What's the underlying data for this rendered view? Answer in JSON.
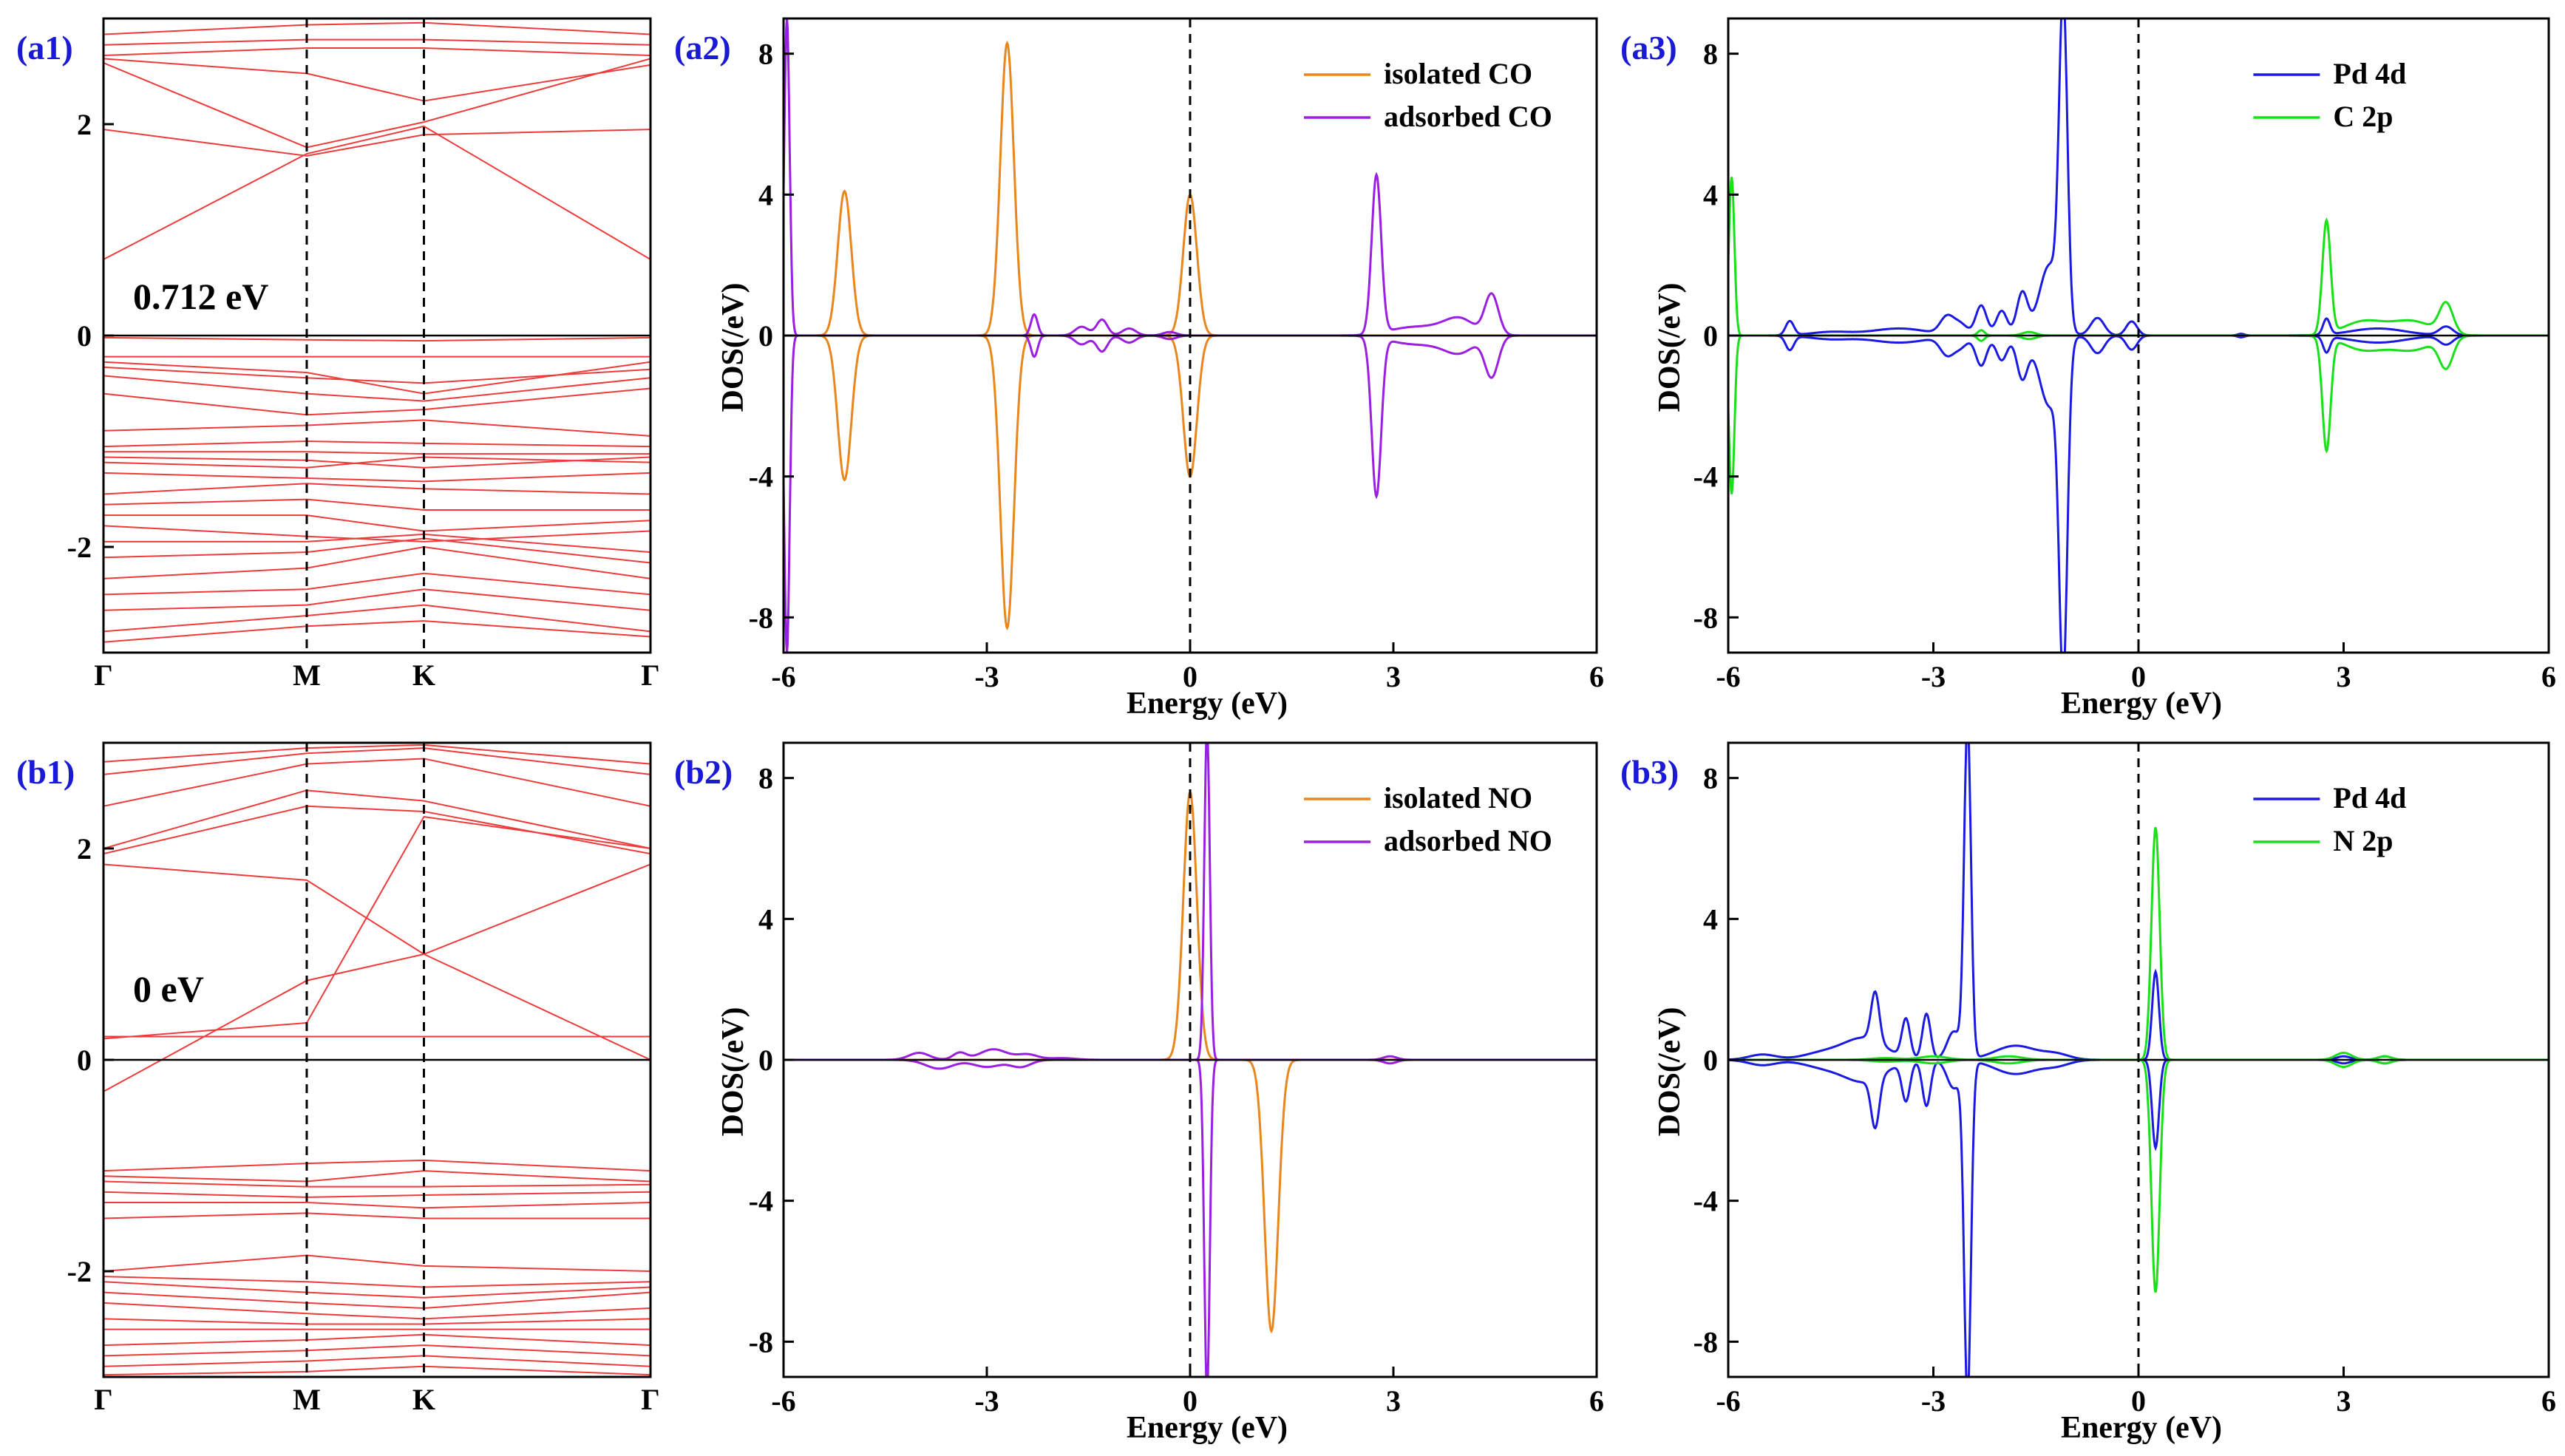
{
  "colors": {
    "band": "#ee3b3b",
    "isolated": "#e8871e",
    "adsorbed": "#9b1fe0",
    "pd4d": "#1a1ae0",
    "p2p": "#19e019",
    "label": "#1a1ad6"
  },
  "chart_data": [
    {
      "id": "a1",
      "type": "line",
      "panel_label": "(a1)",
      "xlabel": "",
      "ylabel": "",
      "x_ticks": [
        "Γ",
        "M",
        "K",
        "Γ"
      ],
      "ylim": [
        -3,
        3
      ],
      "y_ticks": [
        "-2",
        "0",
        "2"
      ],
      "annotation": "0.712 eV",
      "band_edges": {
        "vbm": 0.0,
        "cbm": 0.712
      },
      "conduction_bands": [
        [
          0.72,
          1.72,
          1.98,
          0.72
        ],
        [
          1.95,
          1.7,
          1.9,
          1.95
        ],
        [
          2.58,
          1.78,
          2.02,
          2.62
        ],
        [
          2.62,
          2.48,
          2.22,
          2.56
        ],
        [
          2.65,
          2.72,
          2.72,
          2.65
        ],
        [
          2.75,
          2.8,
          2.8,
          2.75
        ],
        [
          2.85,
          2.94,
          2.96,
          2.85
        ]
      ],
      "valence_bands": [
        [
          -0.02,
          -0.04,
          -0.05,
          -0.02
        ],
        [
          -0.2,
          -0.2,
          -0.2,
          -0.2
        ],
        [
          -0.25,
          -0.35,
          -0.55,
          -0.25
        ],
        [
          -0.3,
          -0.4,
          -0.45,
          -0.32
        ],
        [
          -0.38,
          -0.55,
          -0.62,
          -0.4
        ],
        [
          -0.55,
          -0.75,
          -0.7,
          -0.5
        ],
        [
          -0.9,
          -0.85,
          -0.8,
          -0.95
        ],
        [
          -1.05,
          -1.0,
          -1.02,
          -1.05
        ],
        [
          -1.1,
          -1.1,
          -1.12,
          -1.12
        ],
        [
          -1.15,
          -1.18,
          -1.25,
          -1.15
        ],
        [
          -1.2,
          -1.25,
          -1.15,
          -1.2
        ],
        [
          -1.3,
          -1.35,
          -1.38,
          -1.3
        ],
        [
          -1.5,
          -1.4,
          -1.45,
          -1.5
        ],
        [
          -1.6,
          -1.55,
          -1.65,
          -1.65
        ],
        [
          -1.7,
          -1.7,
          -1.85,
          -1.75
        ],
        [
          -1.8,
          -1.9,
          -1.95,
          -1.85
        ],
        [
          -1.95,
          -1.95,
          -1.88,
          -2.05
        ],
        [
          -2.1,
          -2.05,
          -1.92,
          -2.15
        ],
        [
          -2.3,
          -2.2,
          -2.0,
          -2.3
        ],
        [
          -2.45,
          -2.4,
          -2.25,
          -2.45
        ],
        [
          -2.6,
          -2.55,
          -2.4,
          -2.6
        ],
        [
          -2.8,
          -2.65,
          -2.55,
          -2.8
        ],
        [
          -2.9,
          -2.75,
          -2.7,
          -2.85
        ]
      ]
    },
    {
      "id": "a2",
      "type": "line",
      "panel_label": "(a2)",
      "xlabel": "Energy (eV)",
      "ylabel": "DOS(/eV)",
      "xlim": [
        -6,
        6
      ],
      "ylim": [
        -9,
        9
      ],
      "x_ticks": [
        "-6",
        "-3",
        "0",
        "3",
        "6"
      ],
      "y_ticks": [
        "-8",
        "-4",
        "0",
        "4",
        "8"
      ],
      "legend_position": "top-right",
      "series": [
        {
          "name": "isolated CO",
          "color_key": "isolated",
          "peaks": [
            [
              -5.1,
              4.1,
              0.1
            ],
            [
              -2.7,
              8.3,
              0.1
            ],
            [
              0.0,
              4.0,
              0.1
            ]
          ]
        },
        {
          "name": "adsorbed CO",
          "color_key": "adsorbed",
          "peaks": [
            [
              -5.95,
              9.0,
              0.04
            ],
            [
              -2.3,
              0.6,
              0.05
            ],
            [
              -1.3,
              0.45,
              0.08
            ],
            [
              -1.6,
              0.25,
              0.1
            ],
            [
              -0.9,
              0.2,
              0.1
            ],
            [
              -0.3,
              0.1,
              0.1
            ],
            [
              2.75,
              4.5,
              0.07
            ],
            [
              3.2,
              0.2,
              0.3
            ],
            [
              3.8,
              0.25,
              0.3
            ],
            [
              4.45,
              1.15,
              0.1
            ],
            [
              4.0,
              0.3,
              0.2
            ]
          ]
        }
      ]
    },
    {
      "id": "a3",
      "type": "line",
      "panel_label": "(a3)",
      "xlabel": "Energy (eV)",
      "ylabel": "DOS(/eV)",
      "xlim": [
        -6,
        6
      ],
      "ylim": [
        -9,
        9
      ],
      "x_ticks": [
        "-6",
        "-3",
        "0",
        "3",
        "6"
      ],
      "y_ticks": [
        "-8",
        "-4",
        "0",
        "4",
        "8"
      ],
      "legend_position": "top-right",
      "series": [
        {
          "name": "Pd  4d",
          "color_key": "pd4d",
          "peaks": [
            [
              -5.1,
              0.4,
              0.06
            ],
            [
              -4.5,
              0.1,
              0.3
            ],
            [
              -3.5,
              0.2,
              0.4
            ],
            [
              -2.8,
              0.5,
              0.1
            ],
            [
              -2.6,
              0.3,
              0.1
            ],
            [
              -2.3,
              0.85,
              0.08
            ],
            [
              -2.0,
              0.7,
              0.08
            ],
            [
              -1.7,
              1.2,
              0.08
            ],
            [
              -1.3,
              2.0,
              0.15
            ],
            [
              -1.1,
              9.0,
              0.06
            ],
            [
              -0.6,
              0.5,
              0.1
            ],
            [
              -0.1,
              0.4,
              0.08
            ],
            [
              1.5,
              0.05,
              0.05
            ],
            [
              2.75,
              0.45,
              0.05
            ],
            [
              3.5,
              0.2,
              0.4
            ],
            [
              4.5,
              0.25,
              0.1
            ]
          ]
        },
        {
          "name": "C   2p",
          "color_key": "p2p",
          "peaks": [
            [
              -5.95,
              4.5,
              0.04
            ],
            [
              -2.3,
              0.15,
              0.05
            ],
            [
              -1.6,
              0.1,
              0.1
            ],
            [
              2.75,
              3.2,
              0.06
            ],
            [
              3.3,
              0.4,
              0.3
            ],
            [
              4.0,
              0.4,
              0.3
            ],
            [
              4.5,
              0.85,
              0.1
            ]
          ]
        }
      ]
    },
    {
      "id": "b1",
      "type": "line",
      "panel_label": "(b1)",
      "xlabel": "",
      "ylabel": "",
      "x_ticks": [
        "Γ",
        "M",
        "K",
        "Γ"
      ],
      "ylim": [
        -3,
        3
      ],
      "y_ticks": [
        "-2",
        "0",
        "2"
      ],
      "annotation": "0 eV",
      "conduction_bands": [
        [
          -0.3,
          0.75,
          1.0,
          0.0
        ],
        [
          0.2,
          0.35,
          2.3,
          2.0
        ],
        [
          0.22,
          0.22,
          0.22,
          0.22
        ],
        [
          1.85,
          1.7,
          1.0,
          1.85
        ],
        [
          1.95,
          2.4,
          2.35,
          1.95
        ],
        [
          2.0,
          2.55,
          2.45,
          2.0
        ],
        [
          2.4,
          2.8,
          2.85,
          2.4
        ],
        [
          2.7,
          2.9,
          2.95,
          2.7
        ],
        [
          2.82,
          2.95,
          2.98,
          2.8
        ]
      ],
      "valence_bands": [
        [
          -1.05,
          -0.98,
          -0.95,
          -1.05
        ],
        [
          -1.1,
          -1.15,
          -1.05,
          -1.15
        ],
        [
          -1.15,
          -1.2,
          -1.2,
          -1.18
        ],
        [
          -1.25,
          -1.3,
          -1.28,
          -1.25
        ],
        [
          -1.35,
          -1.35,
          -1.4,
          -1.35
        ],
        [
          -1.5,
          -1.45,
          -1.5,
          -1.5
        ],
        [
          -2.0,
          -1.85,
          -1.95,
          -2.0
        ],
        [
          -2.05,
          -2.1,
          -2.15,
          -2.1
        ],
        [
          -2.1,
          -2.2,
          -2.25,
          -2.15
        ],
        [
          -2.2,
          -2.3,
          -2.35,
          -2.2
        ],
        [
          -2.3,
          -2.4,
          -2.45,
          -2.35
        ],
        [
          -2.45,
          -2.5,
          -2.5,
          -2.45
        ],
        [
          -2.55,
          -2.55,
          -2.55,
          -2.55
        ],
        [
          -2.7,
          -2.65,
          -2.6,
          -2.7
        ],
        [
          -2.8,
          -2.75,
          -2.7,
          -2.8
        ],
        [
          -2.9,
          -2.85,
          -2.8,
          -2.9
        ],
        [
          -2.98,
          -2.95,
          -2.9,
          -2.98
        ]
      ]
    },
    {
      "id": "b2",
      "type": "line",
      "panel_label": "(b2)",
      "xlabel": "Energy (eV)",
      "ylabel": "DOS(/eV)",
      "xlim": [
        -6,
        6
      ],
      "ylim": [
        -9,
        9
      ],
      "x_ticks": [
        "-6",
        "-3",
        "0",
        "3",
        "6"
      ],
      "y_ticks": [
        "-8",
        "-4",
        "0",
        "4",
        "8"
      ],
      "legend_position": "top-right",
      "series": [
        {
          "name": "isolated NO",
          "color_key": "isolated",
          "peaks_up": [
            [
              0.0,
              7.6,
              0.1
            ]
          ],
          "peaks_down": [
            [
              1.2,
              7.7,
              0.1
            ]
          ]
        },
        {
          "name": "adsorbed NO",
          "color_key": "adsorbed",
          "peaks_up": [
            [
              -4.0,
              0.2,
              0.15
            ],
            [
              -3.4,
              0.2,
              0.1
            ],
            [
              -2.9,
              0.3,
              0.2
            ],
            [
              -2.4,
              0.15,
              0.15
            ],
            [
              -1.9,
              0.05,
              0.2
            ],
            [
              0.25,
              9.5,
              0.04
            ],
            [
              2.95,
              0.1,
              0.1
            ]
          ],
          "peaks_down": [
            [
              -3.7,
              0.25,
              0.2
            ],
            [
              -3.0,
              0.2,
              0.2
            ],
            [
              -2.5,
              0.2,
              0.15
            ],
            [
              0.25,
              9.5,
              0.04
            ],
            [
              2.95,
              0.1,
              0.1
            ]
          ]
        }
      ]
    },
    {
      "id": "b3",
      "type": "line",
      "panel_label": "(b3)",
      "xlabel": "Energy (eV)",
      "ylabel": "DOS(/eV)",
      "xlim": [
        -6,
        6
      ],
      "ylim": [
        -9,
        9
      ],
      "x_ticks": [
        "-6",
        "-3",
        "0",
        "3",
        "6"
      ],
      "y_ticks": [
        "-8",
        "-4",
        "0",
        "4",
        "8"
      ],
      "legend_position": "top-right",
      "series": [
        {
          "name": "Pd  4d",
          "color_key": "pd4d",
          "peaks": [
            [
              -5.5,
              0.15,
              0.2
            ],
            [
              -4.6,
              0.2,
              0.3
            ],
            [
              -4.0,
              0.6,
              0.3
            ],
            [
              -3.85,
              1.4,
              0.06
            ],
            [
              -3.4,
              1.1,
              0.06
            ],
            [
              -3.1,
              1.3,
              0.06
            ],
            [
              -2.7,
              0.8,
              0.1
            ],
            [
              -2.5,
              9.5,
              0.05
            ],
            [
              -1.8,
              0.4,
              0.3
            ],
            [
              -1.2,
              0.15,
              0.2
            ],
            [
              0.25,
              2.5,
              0.05
            ],
            [
              3.0,
              0.1,
              0.1
            ],
            [
              3.6,
              0.1,
              0.1
            ]
          ]
        },
        {
          "name": "N   2p",
          "color_key": "p2p",
          "peaks": [
            [
              -3.7,
              0.05,
              0.2
            ],
            [
              -3.0,
              0.1,
              0.2
            ],
            [
              -1.9,
              0.1,
              0.2
            ],
            [
              0.25,
              6.6,
              0.06
            ],
            [
              3.0,
              0.2,
              0.12
            ],
            [
              3.6,
              0.1,
              0.1
            ]
          ]
        }
      ]
    }
  ]
}
